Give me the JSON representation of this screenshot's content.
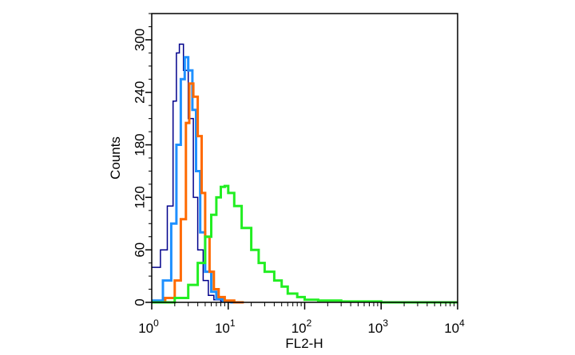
{
  "chart_data": {
    "type": "line",
    "xlabel": "FL2-H",
    "ylabel": "Counts",
    "x_scale": "log",
    "xlim": [
      1,
      10000
    ],
    "ylim": [
      0,
      330
    ],
    "x_ticks": [
      {
        "value": 1,
        "base": "10",
        "exp": "0"
      },
      {
        "value": 10,
        "base": "10",
        "exp": "1"
      },
      {
        "value": 100,
        "base": "10",
        "exp": "2"
      },
      {
        "value": 1000,
        "base": "10",
        "exp": "3"
      },
      {
        "value": 10000,
        "base": "10",
        "exp": "4"
      }
    ],
    "y_ticks": [
      0,
      60,
      120,
      180,
      240,
      300
    ],
    "grid": false,
    "legend": "none",
    "series": [
      {
        "color": "#00008b",
        "stroke": 1.5,
        "x": [
          1,
          1.3,
          1.6,
          1.9,
          2.1,
          2.3,
          2.6,
          3,
          3.5,
          4,
          4.7,
          5.5,
          6.5,
          8,
          10,
          14
        ],
        "y": [
          40,
          60,
          110,
          230,
          285,
          295,
          265,
          210,
          120,
          60,
          25,
          8,
          3,
          1,
          0,
          0
        ]
      },
      {
        "color": "#1e90ff",
        "stroke": 3,
        "x": [
          1,
          1.4,
          1.8,
          2.1,
          2.4,
          2.7,
          3,
          3.4,
          3.8,
          4.3,
          5,
          6,
          7,
          8.5,
          11,
          15
        ],
        "y": [
          2,
          25,
          90,
          180,
          255,
          280,
          265,
          220,
          150,
          80,
          35,
          12,
          4,
          1,
          0,
          0
        ]
      },
      {
        "color": "#ff6a00",
        "stroke": 3,
        "x": [
          1,
          1.5,
          2,
          2.4,
          2.8,
          3.1,
          3.5,
          4,
          4.5,
          5,
          5.7,
          6.5,
          7.5,
          9,
          12,
          16
        ],
        "y": [
          0,
          5,
          25,
          95,
          205,
          250,
          235,
          190,
          125,
          75,
          35,
          15,
          6,
          2,
          0,
          0
        ]
      },
      {
        "color": "#22ee22",
        "stroke": 3,
        "x": [
          1,
          2,
          3,
          4,
          5,
          6,
          7,
          8,
          9,
          10,
          12,
          15,
          20,
          25,
          30,
          40,
          50,
          60,
          80,
          100,
          150,
          300,
          1000,
          10000
        ],
        "y": [
          0,
          5,
          20,
          45,
          75,
          100,
          120,
          132,
          133,
          125,
          110,
          85,
          60,
          45,
          35,
          25,
          18,
          10,
          6,
          3,
          2,
          1,
          0,
          0
        ]
      }
    ]
  }
}
